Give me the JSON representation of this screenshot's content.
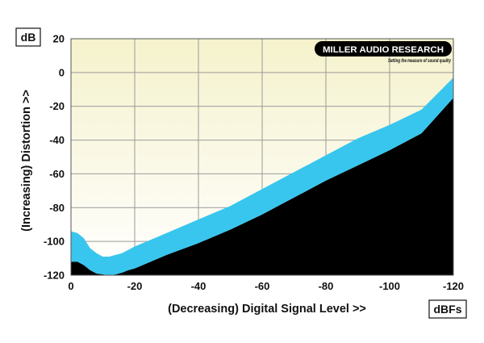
{
  "colors": {
    "band": "#38c6ee",
    "below": "#000000",
    "grid": "#9a9a9a",
    "bg_top": "#f5f2cc",
    "bg_bottom": "#ffffff"
  },
  "logo": {
    "brand": "MILLER AUDIO RESEARCH",
    "tagline": "Setting the measure of sound quality"
  },
  "chart_data": {
    "type": "area",
    "xlabel": "(Decreasing) Digital Signal Level >>",
    "ylabel": "(Increasing) Distortion >>",
    "x_unit": "dBFs",
    "y_unit": "dB",
    "xlim": [
      0,
      -120
    ],
    "ylim": [
      -120,
      20
    ],
    "x_ticks": [
      0,
      -20,
      -40,
      -60,
      -80,
      -100,
      -120
    ],
    "x_tick_labels": [
      "0",
      "-20",
      "-40",
      "-60",
      "-80",
      "-100",
      "-120"
    ],
    "y_ticks": [
      20,
      0,
      -20,
      -40,
      -60,
      -80,
      -100,
      -120
    ],
    "y_tick_labels": [
      "20",
      "0",
      "-20",
      "-40",
      "-60",
      "-80",
      "-100",
      "-120"
    ],
    "grid": true,
    "series": [
      {
        "x": [
          0,
          -2,
          -4,
          -6,
          -8,
          -10,
          -12,
          -14,
          -16,
          -18,
          -20,
          -25,
          -30,
          -40,
          -50,
          -60,
          -70,
          -80,
          -90,
          -100,
          -110,
          -120
        ],
        "upper": [
          -94,
          -95,
          -98,
          -104,
          -107,
          -109,
          -109,
          -108,
          -107,
          -105,
          -103,
          -99,
          -95,
          -87,
          -79,
          -69,
          -59,
          -49,
          -39,
          -31,
          -22,
          -3
        ],
        "lower": [
          -112,
          -112,
          -114,
          -117,
          -119,
          -119.5,
          -120,
          -119.5,
          -118.5,
          -117,
          -116,
          -112,
          -108,
          -101,
          -93,
          -84,
          -74,
          -64,
          -55,
          -46,
          -36,
          -15
        ]
      }
    ]
  }
}
